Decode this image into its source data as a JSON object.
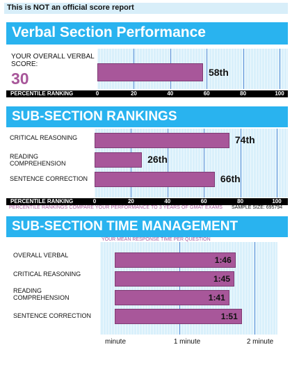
{
  "notice": "This is NOT an official score report",
  "verbal": {
    "title": "Verbal Section Performance",
    "score_label": "YOUR OVERALL VERBAL SCORE:",
    "score": "30",
    "percentile": 58,
    "percentile_label": "58th"
  },
  "axis": {
    "title": "PERCENTILE RANKING",
    "ticks": [
      "0",
      "20",
      "40",
      "60",
      "80",
      "100"
    ]
  },
  "subsections": {
    "title": "SUB-SECTION RANKINGS",
    "rows": [
      {
        "label": "CRITICAL REASONING",
        "percentile": 74,
        "percentile_label": "74th"
      },
      {
        "label": "READING COMPREHENSION",
        "percentile": 26,
        "percentile_label": "26th"
      },
      {
        "label": "SENTENCE CORRECTION",
        "percentile": 66,
        "percentile_label": "66th"
      }
    ],
    "footnote": "PERCENTILE RANKINGS COMPARE YOUR PERFORMANCE TO 3 YEARS OF GMAT EXAMS",
    "sample_size": "SAMPLE SIZE: 695794"
  },
  "time": {
    "title": "SUB-SECTION TIME MANAGEMENT",
    "caption": "YOUR MEAN RESPONSE TIME PER QUESTION",
    "rows": [
      {
        "label": "OVERALL VERBAL",
        "seconds": 106,
        "display": "1:46"
      },
      {
        "label": "CRITICAL REASONING",
        "seconds": 105,
        "display": "1:45"
      },
      {
        "label": "READING COMPREHENSION",
        "seconds": 101,
        "display": "1:41"
      },
      {
        "label": "SENTENCE CORRECTION",
        "seconds": 111,
        "display": "1:51"
      }
    ],
    "axis_labels": [
      "minute",
      "1 minute",
      "2 minute"
    ]
  },
  "colors": {
    "banner": "#29b3ef",
    "bar": "#a8579a",
    "plot_bg": "#d9f0fb",
    "notice_bg": "#d8eef9"
  }
}
